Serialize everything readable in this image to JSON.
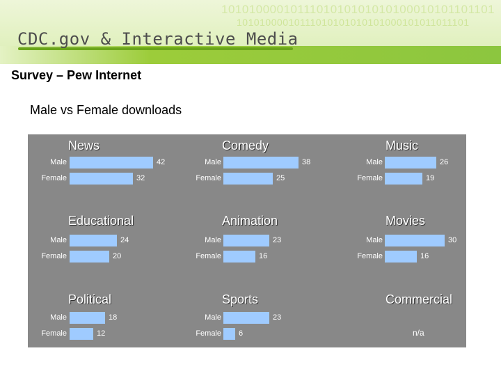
{
  "header": {
    "binary_line_1": "1010100001011101010101010100010101101101",
    "binary_line_2": "10101000010111010101010101000101011011101",
    "title": "CDC.gov & Interactive Media"
  },
  "slide": {
    "title": "Survey – Pew Internet",
    "subtitle": "Male vs Female downloads"
  },
  "colors": {
    "bar": "#9fcbff",
    "panel": "#888888",
    "banner_accent": "#8cc63f"
  },
  "chart_data": {
    "type": "bar",
    "series_labels": [
      "Male",
      "Female"
    ],
    "panels": [
      {
        "title": "News",
        "values": [
          42,
          32
        ]
      },
      {
        "title": "Comedy",
        "values": [
          38,
          25
        ]
      },
      {
        "title": "Music",
        "values": [
          26,
          19
        ]
      },
      {
        "title": "Educational",
        "values": [
          24,
          20
        ]
      },
      {
        "title": "Animation",
        "values": [
          23,
          16
        ]
      },
      {
        "title": "Movies",
        "values": [
          30,
          16
        ]
      },
      {
        "title": "Political",
        "values": [
          18,
          12
        ]
      },
      {
        "title": "Sports",
        "values": [
          23,
          6
        ]
      },
      {
        "title": "Commercial",
        "values": [],
        "note": "n/a"
      }
    ]
  }
}
